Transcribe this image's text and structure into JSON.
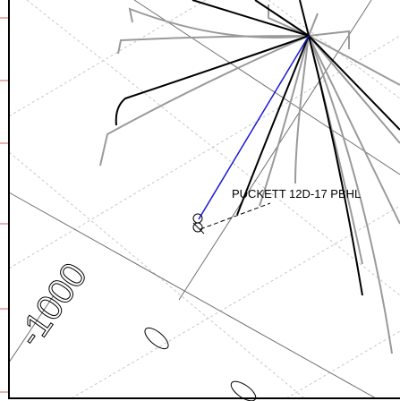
{
  "label": "PUCKETT 12D-17 PBHL",
  "contour_label": "-1000"
}
